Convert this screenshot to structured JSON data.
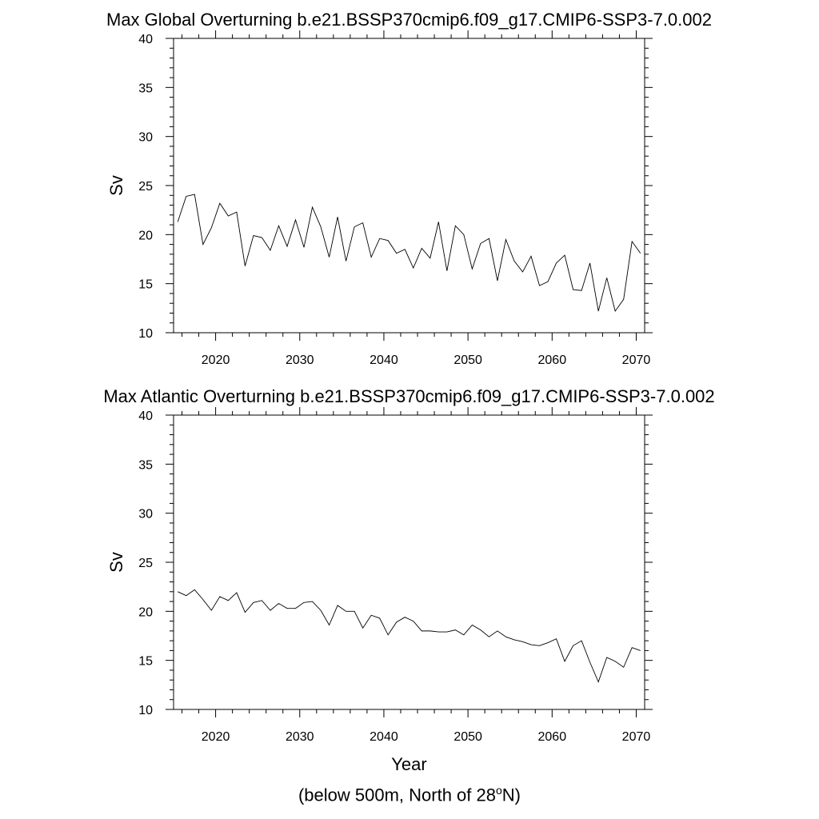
{
  "chart_data": [
    {
      "type": "line",
      "title": "Max Global Overturning b.e21.BSSP370cmip6.f09_g17.CMIP6-SSP3-7.0.002",
      "xlabel": "",
      "ylabel": "Sv",
      "xlim": [
        2015,
        2071
      ],
      "ylim": [
        10,
        40
      ],
      "xticks": [
        2020,
        2030,
        2040,
        2050,
        2060,
        2070
      ],
      "yticks": [
        10,
        15,
        20,
        25,
        30,
        35,
        40
      ],
      "grid": false,
      "line_color": "#000000",
      "x": [
        2015.5,
        2016.5,
        2017.5,
        2018.5,
        2019.5,
        2020.5,
        2021.5,
        2022.5,
        2023.5,
        2024.5,
        2025.5,
        2026.5,
        2027.5,
        2028.5,
        2029.5,
        2030.5,
        2031.5,
        2032.5,
        2033.5,
        2034.5,
        2035.5,
        2036.5,
        2037.5,
        2038.5,
        2039.5,
        2040.5,
        2041.5,
        2042.5,
        2043.5,
        2044.5,
        2045.5,
        2046.5,
        2047.5,
        2048.5,
        2049.5,
        2050.5,
        2051.5,
        2052.5,
        2053.5,
        2054.5,
        2055.5,
        2056.5,
        2057.5,
        2058.5,
        2059.5,
        2060.5,
        2061.5,
        2062.5,
        2063.5,
        2064.5,
        2065.5,
        2066.5,
        2067.5,
        2068.5,
        2069.5,
        2070.5
      ],
      "y": [
        21.3,
        23.9,
        24.1,
        19.0,
        20.7,
        23.2,
        21.9,
        22.3,
        16.8,
        19.9,
        19.7,
        18.4,
        20.9,
        18.8,
        21.5,
        18.7,
        22.8,
        20.8,
        17.7,
        21.8,
        17.3,
        20.8,
        21.2,
        17.7,
        19.6,
        19.4,
        18.1,
        18.5,
        16.6,
        18.6,
        17.6,
        21.3,
        16.3,
        20.9,
        20.0,
        16.5,
        19.1,
        19.6,
        15.3,
        19.5,
        17.3,
        16.2,
        17.8,
        14.8,
        15.2,
        17.1,
        17.9,
        14.4,
        14.3,
        17.1,
        12.2,
        15.6,
        12.2,
        13.4,
        19.3,
        18.1
      ]
    },
    {
      "type": "line",
      "title": "Max Atlantic Overturning b.e21.BSSP370cmip6.f09_g17.CMIP6-SSP3-7.0.002",
      "xlabel": "Year",
      "ylabel": "Sv",
      "xlim": [
        2015,
        2071
      ],
      "ylim": [
        10,
        40
      ],
      "xticks": [
        2020,
        2030,
        2040,
        2050,
        2060,
        2070
      ],
      "yticks": [
        10,
        15,
        20,
        25,
        30,
        35,
        40
      ],
      "grid": false,
      "line_color": "#000000",
      "x": [
        2015.5,
        2016.5,
        2017.5,
        2018.5,
        2019.5,
        2020.5,
        2021.5,
        2022.5,
        2023.5,
        2024.5,
        2025.5,
        2026.5,
        2027.5,
        2028.5,
        2029.5,
        2030.5,
        2031.5,
        2032.5,
        2033.5,
        2034.5,
        2035.5,
        2036.5,
        2037.5,
        2038.5,
        2039.5,
        2040.5,
        2041.5,
        2042.5,
        2043.5,
        2044.5,
        2045.5,
        2046.5,
        2047.5,
        2048.5,
        2049.5,
        2050.5,
        2051.5,
        2052.5,
        2053.5,
        2054.5,
        2055.5,
        2056.5,
        2057.5,
        2058.5,
        2059.5,
        2060.5,
        2061.5,
        2062.5,
        2063.5,
        2064.5,
        2065.5,
        2066.5,
        2067.5,
        2068.5,
        2069.5,
        2070.5
      ],
      "y": [
        22.0,
        21.6,
        22.2,
        21.2,
        20.1,
        21.5,
        21.1,
        21.9,
        19.9,
        20.9,
        21.1,
        20.1,
        20.8,
        20.3,
        20.3,
        20.9,
        21.0,
        20.1,
        18.6,
        20.6,
        20.0,
        20.0,
        18.3,
        19.6,
        19.3,
        17.6,
        18.9,
        19.4,
        19.0,
        18.0,
        18.0,
        17.9,
        17.9,
        18.1,
        17.6,
        18.6,
        18.1,
        17.4,
        18.0,
        17.4,
        17.1,
        16.9,
        16.6,
        16.5,
        16.8,
        17.2,
        14.9,
        16.5,
        17.0,
        14.8,
        12.8,
        15.3,
        14.9,
        14.3,
        16.3,
        16.0
      ]
    }
  ],
  "footnote": {
    "prefix": "(below 500m, North of 28",
    "sup": "o",
    "suffix": "N)"
  }
}
